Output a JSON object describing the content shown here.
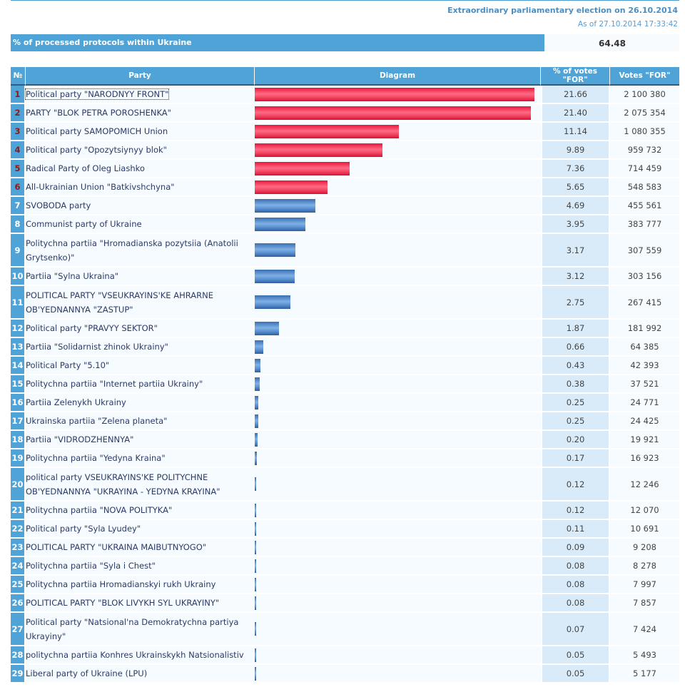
{
  "header": {
    "election_title": "Extraordinary parliamentary election on 26.10.2014",
    "as_of": "As of 27.10.2014 17:33:42"
  },
  "protocols": {
    "label": "% of processed protocols within Ukraine",
    "value": "64.48"
  },
  "table": {
    "columns": [
      "№",
      "Party",
      "Diagram",
      "% of votes \"FOR\"",
      "Votes \"FOR\""
    ],
    "colors": {
      "passed_bar": "#f24766",
      "failed_bar": "#5b92d2",
      "header_bg": "#4fa3d6",
      "passed_number": "#8b1a1a"
    },
    "rows": [
      {
        "num": "1",
        "party": "Political party \"NARODNYY FRONT\"",
        "pct": "21.66",
        "votes": "2 100 380",
        "passed": true
      },
      {
        "num": "2",
        "party": "PARTY \"BLOK PETRA POROSHENKA\"",
        "pct": "21.40",
        "votes": "2 075 354",
        "passed": true
      },
      {
        "num": "3",
        "party": "Political party SAMOPOMICH Union",
        "pct": "11.14",
        "votes": "1 080 355",
        "passed": true
      },
      {
        "num": "4",
        "party": "Political party \"Opozytsiynyy blok\"",
        "pct": "9.89",
        "votes": "959 732",
        "passed": true
      },
      {
        "num": "5",
        "party": "Radical Party of Oleg Liashko",
        "pct": "7.36",
        "votes": "714 459",
        "passed": true
      },
      {
        "num": "6",
        "party": "All-Ukrainian Union \"Batkivshchyna\"",
        "pct": "5.65",
        "votes": "548 583",
        "passed": true
      },
      {
        "num": "7",
        "party": "SVOBODA party",
        "pct": "4.69",
        "votes": "455 561",
        "passed": false
      },
      {
        "num": "8",
        "party": "Communist party of Ukraine",
        "pct": "3.95",
        "votes": "383 777",
        "passed": false
      },
      {
        "num": "9",
        "party": "Politychna partiia \"Hromadianska pozytsiia (Anatolii Grytsenko)\"",
        "pct": "3.17",
        "votes": "307 559",
        "passed": false,
        "tall": true
      },
      {
        "num": "10",
        "party": "Partiia \"Sylna Ukraina\"",
        "pct": "3.12",
        "votes": "303 156",
        "passed": false
      },
      {
        "num": "11",
        "party": "POLITICAL PARTY \"VSEUKRAYINS'KE AHRARNE OB'YEDNANNYA \"ZASTUP\"",
        "pct": "2.75",
        "votes": "267 415",
        "passed": false,
        "tall": true
      },
      {
        "num": "12",
        "party": "Political party \"PRAVYY SEKTOR\"",
        "pct": "1.87",
        "votes": "181 992",
        "passed": false
      },
      {
        "num": "13",
        "party": "Partiia \"Solidarnist zhinok Ukrainy\"",
        "pct": "0.66",
        "votes": "64 385",
        "passed": false
      },
      {
        "num": "14",
        "party": "Political Party \"5.10\"",
        "pct": "0.43",
        "votes": "42 393",
        "passed": false
      },
      {
        "num": "15",
        "party": "Politychna partiia \"Internet partiia Ukrainy\"",
        "pct": "0.38",
        "votes": "37 521",
        "passed": false
      },
      {
        "num": "16",
        "party": "Partiia Zelenykh Ukrainy",
        "pct": "0.25",
        "votes": "24 771",
        "passed": false
      },
      {
        "num": "17",
        "party": "Ukrainska partiia \"Zelena planeta\"",
        "pct": "0.25",
        "votes": "24 425",
        "passed": false
      },
      {
        "num": "18",
        "party": "Partiia \"VIDRODZHENNYA\"",
        "pct": "0.20",
        "votes": "19 921",
        "passed": false
      },
      {
        "num": "19",
        "party": "Politychna partiia \"Yedyna Kraina\"",
        "pct": "0.17",
        "votes": "16 923",
        "passed": false
      },
      {
        "num": "20",
        "party": "political party VSEUKRAYINS'KE POLITYCHNE OB'YEDNANNYA \"UKRAYINA - YEDYNA KRAYINA\"",
        "pct": "0.12",
        "votes": "12 246",
        "passed": false,
        "tall": true
      },
      {
        "num": "21",
        "party": "Politychna partiia \"NOVA POLITYKA\"",
        "pct": "0.12",
        "votes": "12 070",
        "passed": false
      },
      {
        "num": "22",
        "party": "Political party \"Syla Lyudey\"",
        "pct": "0.11",
        "votes": "10 691",
        "passed": false
      },
      {
        "num": "23",
        "party": "POLITICAL PARTY \"UKRAINA MAIBUTNYOGO\"",
        "pct": "0.09",
        "votes": "9 208",
        "passed": false
      },
      {
        "num": "24",
        "party": "Politychna partiia \"Syla i Chest\"",
        "pct": "0.08",
        "votes": "8 278",
        "passed": false
      },
      {
        "num": "25",
        "party": "Politychna partiia Hromadianskyi rukh Ukrainy",
        "pct": "0.08",
        "votes": "7 997",
        "passed": false
      },
      {
        "num": "26",
        "party": "POLITICAL PARTY \"BLOK LIVYKH SYL UKRAYINY\"",
        "pct": "0.08",
        "votes": "7 857",
        "passed": false
      },
      {
        "num": "27",
        "party": "Political party \"Natsional'na Demokratychna partiya Ukrayiny\"",
        "pct": "0.07",
        "votes": "7 424",
        "passed": false,
        "tall": true
      },
      {
        "num": "28",
        "party": "politychna partiia Konhres Ukrainskykh Natsionalistiv",
        "pct": "0.05",
        "votes": "5 493",
        "passed": false
      },
      {
        "num": "29",
        "party": "Liberal party of Ukraine (LPU)",
        "pct": "0.05",
        "votes": "5 177",
        "passed": false
      }
    ]
  }
}
